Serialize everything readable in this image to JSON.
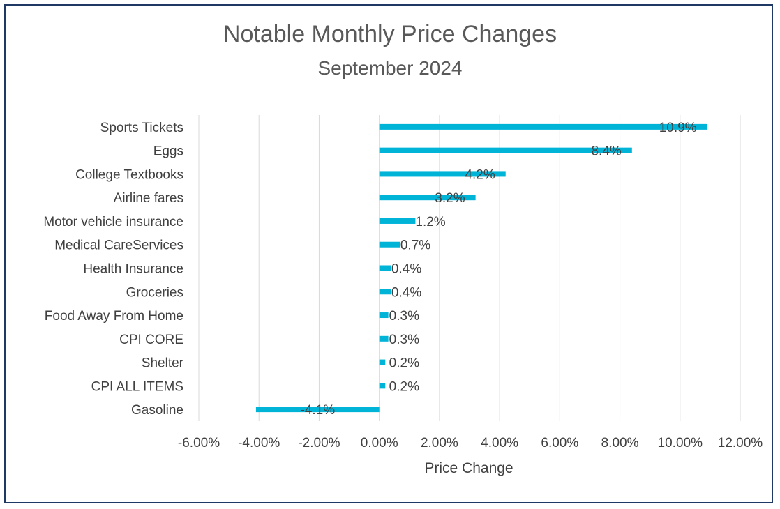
{
  "chart_data": {
    "type": "bar",
    "orientation": "horizontal",
    "title": "Notable Monthly Price Changes",
    "subtitle": "September 2024",
    "xlabel": "Price Change",
    "ylabel": "",
    "xlim": [
      -0.06,
      0.12
    ],
    "xticks": [
      -0.06,
      -0.04,
      -0.02,
      0.0,
      0.02,
      0.04,
      0.06,
      0.08,
      0.1,
      0.12
    ],
    "xtick_labels": [
      "-6.00%",
      "-4.00%",
      "-2.00%",
      "0.00%",
      "2.00%",
      "4.00%",
      "6.00%",
      "8.00%",
      "10.00%",
      "12.00%"
    ],
    "grid": true,
    "bar_color": "#00b4d8",
    "categories": [
      "Sports Tickets",
      "Eggs",
      "College Textbooks",
      "Airline fares",
      "Motor vehicle insurance",
      "Medical CareServices",
      "Health Insurance",
      "Groceries",
      "Food Away From Home",
      "CPI CORE",
      "Shelter",
      "CPI ALL ITEMS",
      "Gasoline"
    ],
    "values": [
      0.109,
      0.084,
      0.042,
      0.032,
      0.012,
      0.007,
      0.004,
      0.004,
      0.003,
      0.003,
      0.002,
      0.002,
      -0.041
    ],
    "data_labels": [
      "10.9%",
      "8.4%",
      "4.2%",
      "3.2%",
      "1.2%",
      "0.7%",
      "0.4%",
      "0.4%",
      "0.3%",
      "0.3%",
      "0.2%",
      "0.2%",
      "-4.1%"
    ]
  }
}
